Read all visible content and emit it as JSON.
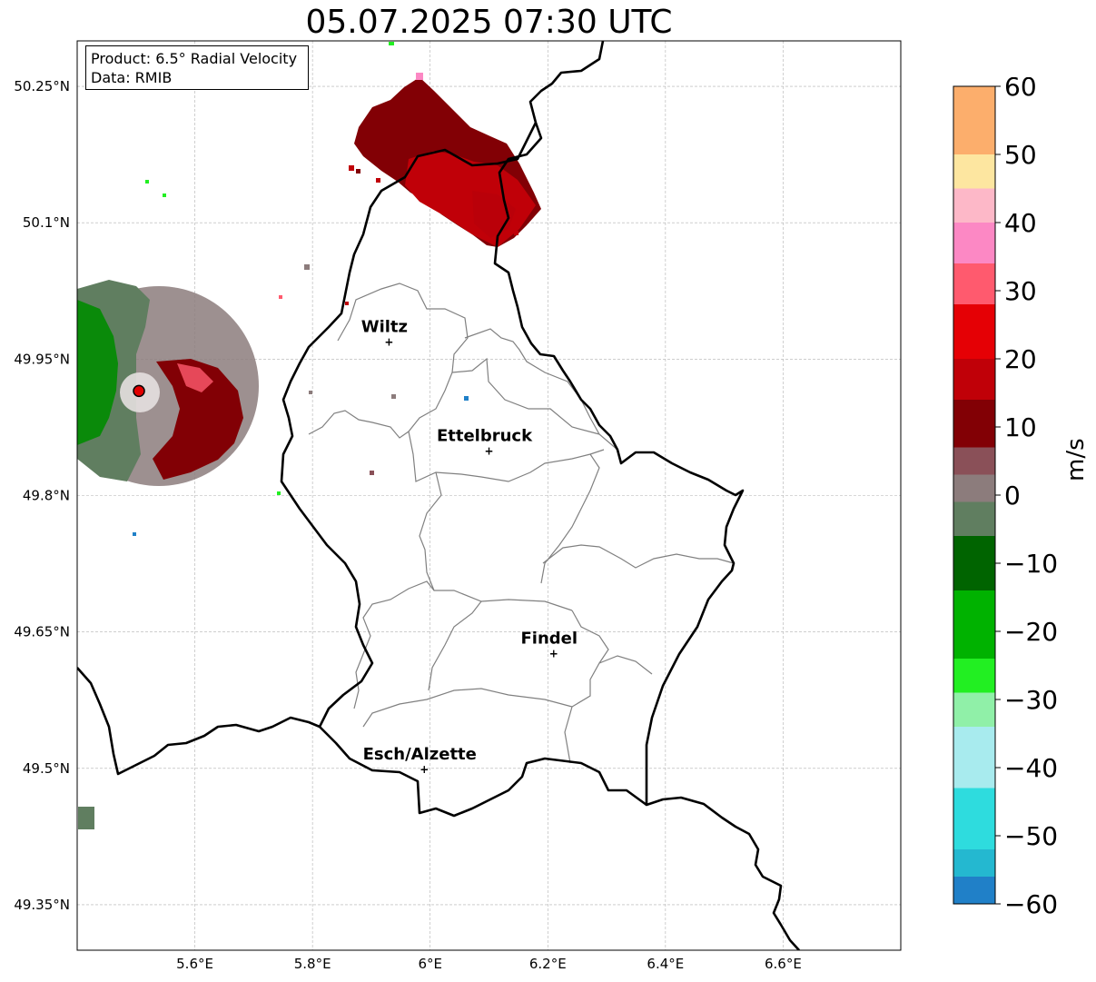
{
  "title": "05.07.2025 07:30 UTC",
  "info_box": {
    "product": "Product: 6.5° Radial Velocity",
    "data": "Data: RMIB"
  },
  "map": {
    "lon_range": [
      5.4,
      6.8
    ],
    "lat_range": [
      49.3,
      50.3
    ],
    "lon_ticks": [
      "5.6°E",
      "5.8°E",
      "6°E",
      "6.2°E",
      "6.4°E",
      "6.6°E"
    ],
    "lon_tick_values": [
      5.6,
      5.8,
      6.0,
      6.2,
      6.4,
      6.6
    ],
    "lat_ticks": [
      "50.25°N",
      "50.1°N",
      "49.95°N",
      "49.8°N",
      "49.65°N",
      "49.5°N",
      "49.35°N"
    ],
    "lat_tick_values": [
      50.25,
      50.1,
      49.95,
      49.8,
      49.65,
      49.5,
      49.35
    ],
    "cities": [
      {
        "name": "Wiltz",
        "lon": 5.93,
        "lat": 49.97
      },
      {
        "name": "Ettelbruck",
        "lon": 6.1,
        "lat": 49.85
      },
      {
        "name": "Findel",
        "lon": 6.21,
        "lat": 49.627
      },
      {
        "name": "Esch/Alzette",
        "lon": 5.99,
        "lat": 49.5
      }
    ],
    "radar_site": {
      "lon": 5.505,
      "lat": 49.915
    }
  },
  "colorbar": {
    "unit": "m/s",
    "min": -60,
    "max": 60,
    "ticks": [
      60,
      50,
      40,
      30,
      20,
      10,
      0,
      -10,
      -20,
      -30,
      -40,
      -50,
      -60
    ],
    "tick_labels": [
      "60",
      "50",
      "40",
      "30",
      "20",
      "10",
      "0",
      "−10",
      "−20",
      "−30",
      "−40",
      "−50",
      "−60"
    ],
    "colors": [
      {
        "from": 50,
        "to": 60,
        "color": "#fcae6c"
      },
      {
        "from": 45,
        "to": 50,
        "color": "#fde6a0"
      },
      {
        "from": 40,
        "to": 45,
        "color": "#fdb8c8"
      },
      {
        "from": 34,
        "to": 40,
        "color": "#fc88c4"
      },
      {
        "from": 28,
        "to": 34,
        "color": "#ff5a6e"
      },
      {
        "from": 20,
        "to": 28,
        "color": "#e50005"
      },
      {
        "from": 14,
        "to": 20,
        "color": "#c00008"
      },
      {
        "from": 7,
        "to": 14,
        "color": "#820005"
      },
      {
        "from": 3,
        "to": 7,
        "color": "#8a5058"
      },
      {
        "from": -1,
        "to": 3,
        "color": "#8c7c7c"
      },
      {
        "from": -6,
        "to": -1,
        "color": "#607e60"
      },
      {
        "from": -14,
        "to": -6,
        "color": "#006400"
      },
      {
        "from": -24,
        "to": -14,
        "color": "#00b200"
      },
      {
        "from": -29,
        "to": -24,
        "color": "#22ef22"
      },
      {
        "from": -34,
        "to": -29,
        "color": "#90f0a8"
      },
      {
        "from": -43,
        "to": -34,
        "color": "#a8ebee"
      },
      {
        "from": -52,
        "to": -43,
        "color": "#2edcde"
      },
      {
        "from": -56,
        "to": -52,
        "color": "#24b8d0"
      },
      {
        "from": -60,
        "to": -56,
        "color": "#2080c8"
      }
    ]
  }
}
